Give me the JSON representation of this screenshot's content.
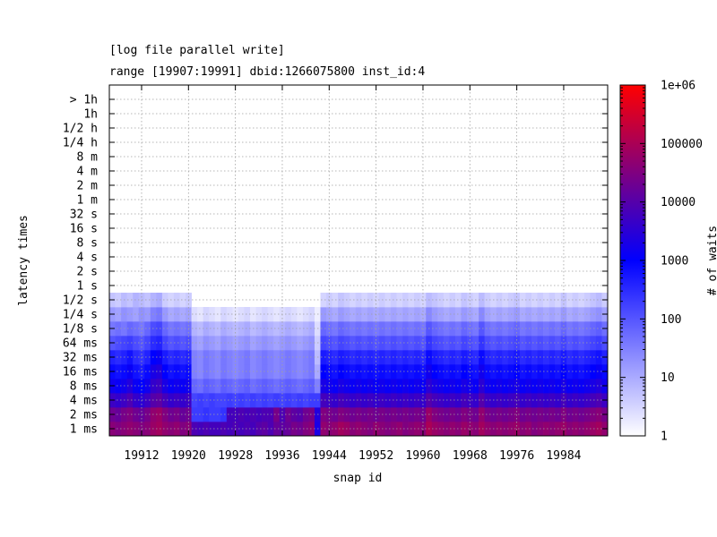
{
  "chart_data": {
    "type": "heatmap",
    "title": "[log file parallel write]",
    "subtitle": "range [19907:19991] dbid:1266075800 inst_id:4",
    "xlabel": "snap id",
    "ylabel": "latency times",
    "colorbar_label": "# of waits",
    "x_range": [
      19907,
      19991
    ],
    "x_ticks": [
      19912,
      19920,
      19928,
      19936,
      19944,
      19952,
      19960,
      19968,
      19976,
      19984
    ],
    "y_categories": [
      "1 ms",
      "2 ms",
      "4 ms",
      "8 ms",
      "16 ms",
      "32 ms",
      "64 ms",
      "1/8 s",
      "1/4 s",
      "1/2 s",
      "1 s",
      "2 s",
      "4 s",
      "8 s",
      "16 s",
      "32 s",
      "1 m",
      "2 m",
      "4 m",
      "8 m",
      "1/4 h",
      "1/2 h",
      "1h",
      "> 1h"
    ],
    "colorbar_scale": "log",
    "colorbar_range": [
      1,
      1000000
    ],
    "colorbar_ticks": [
      "1",
      "10",
      "100",
      "1000",
      "10000",
      "100000",
      "1e+06"
    ],
    "colormap": [
      "#ffffff",
      "#0000ff",
      "#ff0000"
    ],
    "grid": true,
    "z_log10_rows": [
      [
        4.6,
        4.5,
        4.6,
        4.7,
        4.6,
        4.5,
        4.6,
        4.8,
        4.9,
        4.7,
        4.6,
        4.7,
        4.5,
        4.6,
        3.9,
        3.8,
        3.9,
        3.8,
        3.8,
        3.9,
        3.8,
        3.9,
        3.8,
        3.9,
        3.8,
        4.0,
        4.1,
        3.9,
        4.2,
        4.1,
        4.2,
        4.4,
        4.3,
        4.5,
        4.6,
        3.3,
        4.7,
        4.6,
        4.7,
        4.9,
        4.8,
        4.6,
        4.7,
        4.6,
        4.5,
        4.7,
        4.6,
        4.5,
        4.6,
        4.7,
        4.5,
        4.6,
        4.7,
        4.6,
        5.0,
        4.8,
        4.7,
        4.6,
        4.7,
        4.6,
        4.8,
        4.7,
        4.6,
        4.9,
        4.7,
        4.6,
        4.7,
        4.6,
        4.7,
        4.8,
        4.6,
        4.7,
        4.5,
        4.6,
        4.7,
        4.6,
        4.7,
        4.8,
        4.6,
        4.7,
        4.6,
        4.7,
        4.8,
        4.9,
        4.7
      ],
      [
        4.3,
        4.2,
        4.4,
        4.5,
        4.3,
        4.2,
        4.4,
        4.7,
        4.8,
        4.5,
        4.3,
        4.4,
        4.2,
        4.3,
        2.3,
        2.3,
        2.4,
        2.3,
        2.3,
        2.4,
        3.8,
        3.8,
        3.9,
        3.8,
        3.9,
        3.8,
        3.9,
        3.9,
        4.4,
        3.9,
        4.3,
        4.1,
        4.0,
        4.3,
        4.4,
        3.4,
        4.5,
        4.4,
        4.3,
        4.5,
        4.4,
        4.3,
        4.4,
        4.3,
        4.4,
        4.3,
        4.4,
        4.3,
        4.4,
        4.3,
        4.4,
        4.3,
        4.4,
        4.3,
        4.8,
        4.5,
        4.4,
        4.3,
        4.4,
        4.3,
        4.5,
        4.4,
        4.3,
        4.7,
        4.4,
        4.3,
        4.4,
        4.3,
        4.4,
        4.5,
        4.3,
        4.4,
        4.3,
        4.4,
        4.3,
        4.4,
        4.3,
        4.5,
        4.3,
        4.4,
        4.3,
        4.4,
        4.5,
        4.6,
        4.4
      ],
      [
        3.7,
        3.6,
        3.7,
        3.9,
        3.6,
        3.5,
        3.7,
        4.0,
        4.1,
        3.8,
        3.6,
        3.7,
        3.6,
        3.7,
        2.2,
        2.3,
        2.2,
        2.3,
        2.2,
        2.2,
        2.3,
        2.2,
        2.3,
        2.2,
        2.3,
        2.2,
        2.3,
        2.2,
        2.3,
        2.2,
        2.3,
        2.2,
        2.3,
        2.2,
        2.3,
        2.3,
        3.8,
        3.7,
        3.6,
        3.8,
        3.7,
        3.6,
        3.7,
        3.6,
        3.7,
        3.6,
        3.7,
        3.6,
        3.7,
        3.6,
        3.7,
        3.6,
        3.7,
        3.6,
        4.0,
        3.8,
        3.7,
        3.6,
        3.7,
        3.6,
        3.8,
        3.7,
        3.6,
        4.0,
        3.7,
        3.6,
        3.7,
        3.6,
        3.7,
        3.8,
        3.6,
        3.7,
        3.6,
        3.7,
        3.6,
        3.7,
        3.6,
        3.8,
        3.6,
        3.7,
        3.6,
        3.7,
        3.8,
        3.9,
        3.7
      ],
      [
        3.2,
        3.1,
        3.2,
        3.4,
        3.1,
        3.0,
        3.2,
        3.6,
        3.7,
        3.3,
        3.1,
        3.2,
        3.1,
        3.2,
        1.8,
        1.7,
        1.9,
        1.8,
        1.7,
        1.9,
        1.8,
        1.7,
        1.8,
        1.9,
        1.7,
        1.8,
        1.9,
        1.8,
        1.7,
        1.8,
        1.9,
        1.8,
        1.7,
        1.8,
        1.9,
        1.5,
        3.3,
        3.2,
        3.1,
        3.3,
        3.2,
        3.1,
        3.2,
        3.1,
        3.2,
        3.1,
        3.2,
        3.1,
        3.2,
        3.1,
        3.2,
        3.1,
        3.2,
        3.1,
        3.5,
        3.3,
        3.2,
        3.1,
        3.2,
        3.1,
        3.3,
        3.2,
        3.1,
        3.5,
        3.2,
        3.1,
        3.2,
        3.1,
        3.2,
        3.3,
        3.1,
        3.2,
        3.1,
        3.2,
        3.1,
        3.2,
        3.1,
        3.3,
        3.1,
        3.2,
        3.1,
        3.2,
        3.3,
        3.4,
        3.2
      ],
      [
        2.9,
        2.8,
        2.9,
        3.1,
        2.8,
        2.7,
        2.9,
        3.3,
        3.4,
        3.0,
        2.8,
        2.9,
        2.8,
        2.9,
        1.5,
        1.4,
        1.6,
        1.5,
        1.4,
        1.6,
        1.5,
        1.4,
        1.5,
        1.6,
        1.4,
        1.5,
        1.6,
        1.5,
        1.4,
        1.5,
        1.6,
        1.5,
        1.4,
        1.5,
        1.6,
        1.0,
        3.0,
        2.9,
        2.8,
        3.0,
        2.9,
        2.8,
        2.9,
        2.8,
        2.9,
        2.8,
        2.9,
        2.8,
        2.9,
        2.8,
        2.9,
        2.8,
        2.9,
        2.8,
        3.2,
        3.0,
        2.9,
        2.8,
        2.9,
        2.8,
        3.0,
        2.9,
        2.8,
        3.2,
        2.9,
        2.8,
        2.9,
        2.8,
        2.9,
        3.0,
        2.8,
        2.9,
        2.8,
        2.9,
        2.8,
        2.9,
        2.8,
        3.0,
        2.8,
        2.9,
        2.8,
        2.9,
        3.0,
        3.1,
        2.9
      ],
      [
        2.6,
        2.5,
        2.6,
        2.8,
        2.5,
        2.4,
        2.6,
        3.0,
        3.1,
        2.7,
        2.5,
        2.6,
        2.5,
        2.6,
        1.5,
        1.4,
        1.6,
        1.5,
        1.4,
        1.6,
        1.5,
        1.4,
        1.5,
        1.6,
        1.4,
        1.5,
        1.6,
        1.5,
        1.4,
        1.5,
        1.6,
        1.5,
        1.4,
        1.5,
        1.6,
        0.8,
        2.7,
        2.6,
        2.5,
        2.7,
        2.6,
        2.5,
        2.6,
        2.5,
        2.6,
        2.5,
        2.6,
        2.5,
        2.6,
        2.5,
        2.6,
        2.5,
        2.6,
        2.5,
        2.9,
        2.7,
        2.6,
        2.5,
        2.6,
        2.5,
        2.7,
        2.6,
        2.5,
        2.9,
        2.6,
        2.5,
        2.6,
        2.5,
        2.6,
        2.7,
        2.5,
        2.6,
        2.5,
        2.6,
        2.5,
        2.6,
        2.5,
        2.7,
        2.5,
        2.6,
        2.5,
        2.6,
        2.7,
        2.8,
        2.6
      ],
      [
        2.0,
        2.1,
        2.2,
        2.3,
        2.1,
        2.0,
        2.2,
        2.5,
        2.6,
        2.2,
        2.0,
        2.1,
        2.0,
        2.1,
        1.2,
        1.1,
        1.3,
        1.2,
        1.1,
        1.3,
        1.2,
        1.1,
        1.2,
        1.3,
        1.1,
        1.2,
        1.3,
        1.2,
        1.1,
        1.2,
        1.3,
        1.2,
        1.1,
        1.2,
        1.3,
        0.6,
        2.2,
        2.1,
        2.0,
        2.2,
        2.1,
        2.0,
        2.1,
        2.0,
        2.1,
        2.0,
        2.1,
        2.0,
        2.1,
        2.0,
        2.1,
        2.0,
        2.1,
        2.0,
        2.4,
        2.2,
        2.1,
        2.0,
        2.1,
        2.0,
        2.2,
        2.1,
        2.0,
        2.4,
        2.1,
        2.0,
        2.1,
        2.0,
        2.1,
        2.2,
        2.0,
        2.1,
        2.0,
        2.1,
        2.0,
        2.1,
        2.0,
        2.2,
        2.0,
        2.1,
        2.0,
        2.1,
        2.2,
        2.3,
        2.1
      ],
      [
        1.6,
        1.7,
        1.6,
        1.8,
        1.7,
        1.6,
        1.8,
        2.1,
        2.2,
        1.8,
        1.6,
        1.7,
        1.6,
        1.7,
        0.9,
        0.8,
        1.0,
        0.9,
        0.8,
        1.0,
        0.9,
        0.8,
        0.9,
        1.0,
        0.8,
        0.9,
        1.0,
        0.9,
        0.8,
        0.9,
        1.0,
        0.9,
        0.8,
        0.9,
        1.0,
        0.4,
        1.8,
        1.7,
        1.6,
        1.8,
        1.7,
        1.6,
        1.7,
        1.6,
        1.7,
        1.6,
        1.7,
        1.6,
        1.7,
        1.6,
        1.7,
        1.6,
        1.7,
        1.6,
        2.0,
        1.8,
        1.7,
        1.6,
        1.7,
        1.6,
        1.8,
        1.7,
        1.6,
        2.0,
        1.7,
        1.6,
        1.7,
        1.6,
        1.7,
        1.8,
        1.6,
        1.7,
        1.6,
        1.7,
        1.6,
        1.7,
        1.6,
        1.8,
        1.6,
        1.7,
        1.6,
        1.7,
        1.8,
        1.9,
        1.7
      ],
      [
        1.2,
        1.1,
        1.3,
        1.2,
        1.1,
        1.3,
        1.2,
        1.5,
        1.6,
        1.2,
        1.0,
        1.1,
        1.0,
        1.1,
        0.4,
        0.3,
        0.5,
        0.4,
        0.3,
        0.5,
        0.4,
        0.3,
        0.4,
        0.5,
        0.3,
        0.4,
        0.5,
        0.4,
        0.3,
        0.4,
        0.5,
        0.4,
        0.3,
        0.4,
        0.5,
        0.2,
        1.2,
        1.1,
        1.0,
        1.2,
        1.1,
        1.0,
        1.1,
        1.0,
        1.1,
        1.0,
        1.1,
        1.0,
        1.1,
        1.0,
        1.1,
        1.0,
        1.1,
        1.0,
        1.4,
        1.2,
        1.1,
        1.0,
        1.1,
        1.0,
        1.2,
        1.1,
        1.0,
        1.4,
        1.1,
        1.0,
        1.1,
        1.0,
        1.1,
        1.2,
        1.0,
        1.1,
        1.0,
        1.1,
        1.0,
        1.1,
        1.0,
        1.2,
        1.0,
        1.1,
        1.0,
        1.1,
        1.2,
        1.3,
        1.1
      ],
      [
        0.7,
        0.6,
        0.8,
        0.7,
        0.9,
        0.8,
        0.7,
        0.9,
        1.0,
        0.6,
        0.5,
        0.6,
        0.5,
        0.6,
        0.0,
        0.0,
        0.0,
        0.0,
        0.0,
        0.0,
        0.0,
        0.0,
        0.0,
        0.0,
        0.0,
        0.0,
        0.0,
        0.0,
        0.0,
        0.0,
        0.0,
        0.0,
        0.0,
        0.0,
        0.0,
        0.0,
        0.5,
        0.6,
        0.5,
        0.7,
        0.6,
        0.5,
        0.6,
        0.5,
        0.6,
        0.5,
        0.6,
        0.5,
        0.6,
        0.5,
        0.6,
        0.5,
        0.6,
        0.5,
        0.8,
        0.7,
        0.6,
        0.5,
        0.6,
        0.5,
        0.7,
        0.6,
        0.5,
        0.8,
        0.6,
        0.5,
        0.6,
        0.5,
        0.6,
        0.7,
        0.5,
        0.6,
        0.5,
        0.6,
        0.5,
        0.6,
        0.5,
        0.7,
        0.5,
        0.6,
        0.5,
        0.6,
        0.7,
        0.8,
        0.6
      ],
      [
        0,
        0,
        0,
        0,
        0,
        0,
        0,
        0,
        0,
        0,
        0,
        0,
        0,
        0,
        0,
        0,
        0,
        0,
        0,
        0,
        0,
        0,
        0,
        0,
        0,
        0,
        0,
        0,
        0,
        0,
        0,
        0,
        0,
        0,
        0,
        0,
        0,
        0,
        0,
        0,
        0,
        0,
        0,
        0,
        0,
        0,
        0,
        0,
        0,
        0,
        0,
        0,
        0,
        0,
        0,
        0,
        0,
        0,
        0,
        0,
        0,
        0,
        0,
        0,
        0,
        0,
        0,
        0,
        0,
        0,
        0,
        0,
        0,
        0,
        0,
        0,
        0,
        0,
        0,
        0,
        0,
        0,
        0,
        0,
        0
      ],
      [
        0,
        0,
        0,
        0,
        0,
        0,
        0,
        0,
        0,
        0,
        0,
        0,
        0,
        0,
        0,
        0,
        0,
        0,
        0,
        0,
        0,
        0,
        0,
        0,
        0,
        0,
        0,
        0,
        0,
        0,
        0,
        0,
        0,
        0,
        0,
        0,
        0,
        0,
        0,
        0,
        0,
        0,
        0,
        0,
        0,
        0,
        0,
        0,
        0,
        0,
        0,
        0,
        0,
        0,
        0,
        0,
        0,
        0,
        0,
        0,
        0,
        0,
        0,
        0,
        0,
        0,
        0,
        0,
        0,
        0,
        0,
        0,
        0,
        0,
        0,
        0,
        0,
        0,
        0,
        0,
        0,
        0,
        0,
        0,
        0
      ]
    ]
  }
}
